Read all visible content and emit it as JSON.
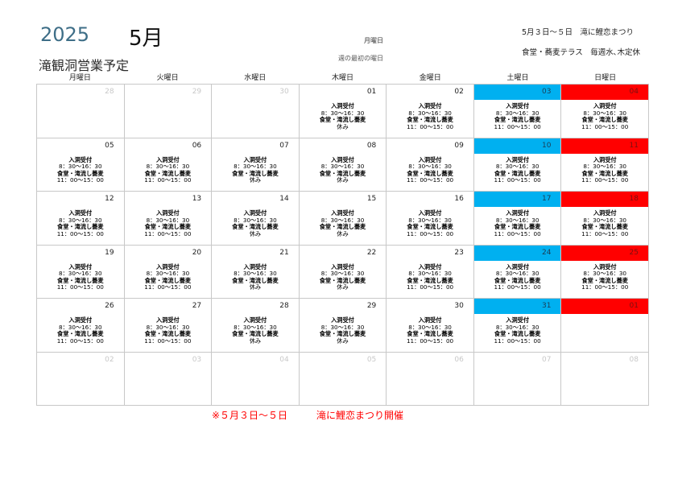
{
  "header": {
    "year": "2025",
    "month": "5月",
    "title": "滝観洞営業予定",
    "week_start_value": "月曜日",
    "week_start_label": "週の最初の曜日",
    "note_festival": "5月３日～５日　滝に鯉恋まつり",
    "note_closed": "食堂・蕎麦テラス　毎週水､木定休"
  },
  "weekdays": [
    "月曜日",
    "火曜日",
    "水曜日",
    "木曜日",
    "金曜日",
    "土曜日",
    "日曜日"
  ],
  "schedules": {
    "open": [
      "入洞受付",
      "8：30～16：30",
      "食堂・滝流し蕎麦",
      "11：00～15：00"
    ],
    "closed": [
      "入洞受付",
      "8：30～16：30",
      "食堂・滝流し蕎麦",
      "休み"
    ]
  },
  "colors": {
    "saturday": "#00b0f0",
    "sunday": "#ff0000",
    "muted": "#c8c8c8"
  },
  "weeks": [
    [
      {
        "d": "28",
        "out": true
      },
      {
        "d": "29",
        "out": true
      },
      {
        "d": "30",
        "out": true
      },
      {
        "d": "01",
        "ev": "closed"
      },
      {
        "d": "02",
        "ev": "open"
      },
      {
        "d": "03",
        "ev": "open"
      },
      {
        "d": "04",
        "ev": "open"
      }
    ],
    [
      {
        "d": "05",
        "ev": "open"
      },
      {
        "d": "06",
        "ev": "open"
      },
      {
        "d": "07",
        "ev": "closed"
      },
      {
        "d": "08",
        "ev": "closed"
      },
      {
        "d": "09",
        "ev": "open"
      },
      {
        "d": "10",
        "ev": "open"
      },
      {
        "d": "11",
        "ev": "open"
      }
    ],
    [
      {
        "d": "12",
        "ev": "open"
      },
      {
        "d": "13",
        "ev": "open"
      },
      {
        "d": "14",
        "ev": "closed"
      },
      {
        "d": "15",
        "ev": "closed"
      },
      {
        "d": "16",
        "ev": "open"
      },
      {
        "d": "17",
        "ev": "open"
      },
      {
        "d": "18",
        "ev": "open"
      }
    ],
    [
      {
        "d": "19",
        "ev": "open"
      },
      {
        "d": "20",
        "ev": "open"
      },
      {
        "d": "21",
        "ev": "closed"
      },
      {
        "d": "22",
        "ev": "closed"
      },
      {
        "d": "23",
        "ev": "open"
      },
      {
        "d": "24",
        "ev": "open"
      },
      {
        "d": "25",
        "ev": "open"
      }
    ],
    [
      {
        "d": "26",
        "ev": "open"
      },
      {
        "d": "27",
        "ev": "open"
      },
      {
        "d": "28",
        "ev": "closed"
      },
      {
        "d": "29",
        "ev": "closed"
      },
      {
        "d": "30",
        "ev": "open"
      },
      {
        "d": "31",
        "ev": "open"
      },
      {
        "d": "01",
        "out": true,
        "keepColor": true
      }
    ],
    [
      {
        "d": "02",
        "out": true
      },
      {
        "d": "03",
        "out": true
      },
      {
        "d": "04",
        "out": true
      },
      {
        "d": "05",
        "out": true
      },
      {
        "d": "06",
        "out": true
      },
      {
        "d": "07",
        "out": true
      },
      {
        "d": "08",
        "out": true
      }
    ]
  ],
  "footer": "※５月３日～５日　　　滝に鯉恋まつり開催"
}
